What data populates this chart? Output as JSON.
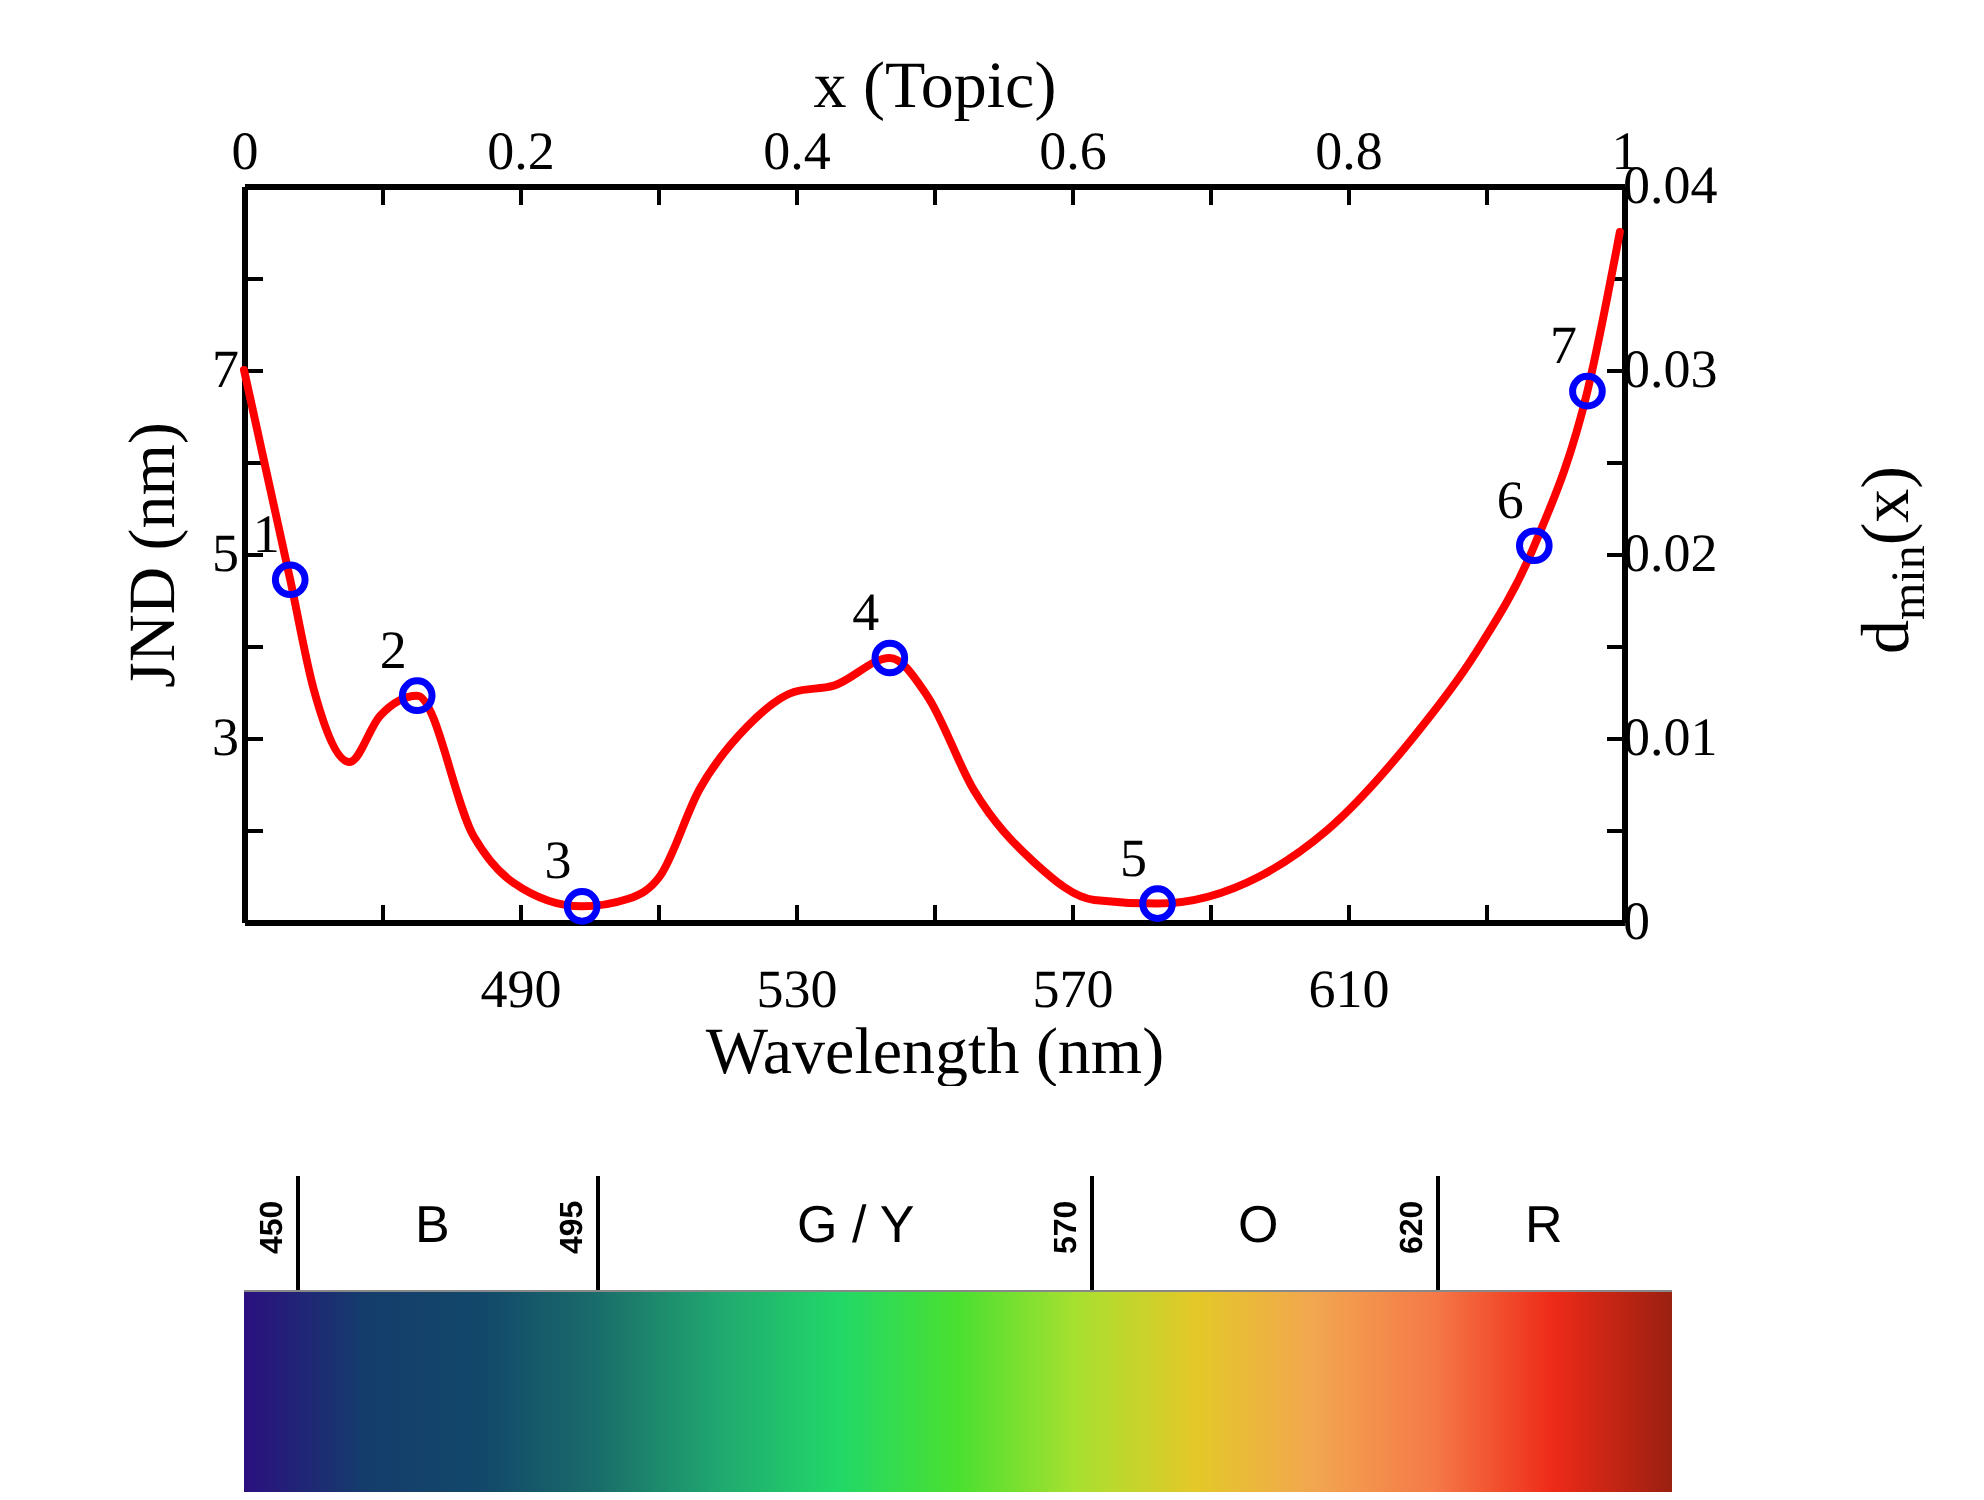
{
  "chart_data": [
    {
      "type": "line",
      "xlabel": "Wavelength (nm)",
      "ylabel": "JND (nm)",
      "x2label": "x (Topic)",
      "y2label": "d$_{min}$(x)",
      "xlim": [
        450,
        650
      ],
      "xticks": [
        {
          "value": 470,
          "label": null
        },
        490,
        {
          "value": 510,
          "label": null
        },
        530,
        {
          "value": 550,
          "label": null
        },
        570,
        {
          "value": 590,
          "label": null
        },
        610,
        {
          "value": 630,
          "label": null
        }
      ],
      "ylim": [
        1,
        9
      ],
      "yticks": [
        {
          "value": 2,
          "label": null
        },
        3,
        {
          "value": 4,
          "label": null
        },
        5,
        {
          "value": 6,
          "label": null
        },
        7,
        {
          "value": 8,
          "label": null
        }
      ],
      "x2lim": [
        0,
        1
      ],
      "x2ticks": [
        0,
        {
          "value": 0.1,
          "label": null
        },
        0.2,
        {
          "value": 0.3,
          "label": null
        },
        0.4,
        {
          "value": 0.5,
          "label": null
        },
        0.6,
        {
          "value": 0.7,
          "label": null
        },
        0.8,
        {
          "value": 0.9,
          "label": null
        },
        1
      ],
      "y2lim": [
        0,
        0.04
      ],
      "y2ticks": [
        0,
        {
          "value": 0.005,
          "label": null
        },
        0.01,
        {
          "value": 0.015,
          "label": null
        },
        0.02,
        {
          "value": 0.025,
          "label": null
        },
        0.03,
        {
          "value": 0.035,
          "label": null
        },
        0.04
      ],
      "line_style": "solid",
      "series": [
        {
          "type": "line",
          "color": "#ff0000",
          "x": [
            450,
            456.7,
            460.1,
            465.3,
            469.7,
            475.1,
            483.3,
            489,
            499,
            505.6,
            510.3,
            516,
            523,
            529.7,
            535.5,
            543.6,
            549,
            555.8,
            564.5,
            573.2,
            582.4,
            597.3,
            607,
            619.6,
            628.3,
            637,
            644.7,
            649.4
          ],
          "values": [
            7.0,
            4.72,
            3.53,
            2.74,
            3.24,
            3.46,
            1.93,
            1.43,
            1.17,
            1.25,
            1.5,
            2.44,
            3.13,
            3.5,
            3.57,
            3.87,
            3.46,
            2.43,
            1.65,
            1.24,
            1.2,
            1.5,
            2.0,
            3.02,
            3.9,
            5.09,
            6.77,
            8.5
          ]
        },
        {
          "type": "scatter",
          "color": "#0000ff",
          "marker": "circle",
          "x": [
            456.7,
            475.1,
            499,
            543.6,
            582.4,
            637,
            644.7
          ],
          "values": [
            4.72,
            3.46,
            1.17,
            3.87,
            1.2,
            5.09,
            6.77
          ]
        }
      ],
      "annotations": [
        {
          "text": "1",
          "x": 456.7,
          "y": 4.72
        },
        {
          "text": "2",
          "x": 475.1,
          "y": 3.46
        },
        {
          "text": "3",
          "x": 499,
          "y": 1.17
        },
        {
          "text": "4",
          "x": 543.6,
          "y": 3.87
        },
        {
          "text": "5",
          "x": 582.4,
          "y": 1.2
        },
        {
          "text": "6",
          "x": 637,
          "y": 5.09
        },
        {
          "text": "7",
          "x": 644.7,
          "y": 6.77
        }
      ]
    },
    {
      "type": "other",
      "annotations": [
        "450",
        "B",
        "495",
        "G / Y",
        "570",
        "O",
        "620",
        "R"
      ],
      "colors": [
        "#2b1080",
        "#153c6c",
        "#12486a",
        "#1a6e6a",
        "#20a870",
        "#22d868",
        "#4ae030",
        "#a8e030",
        "#e4c828",
        "#f2a650",
        "#f57a48",
        "#ee2a18",
        "#9a2010"
      ]
    }
  ]
}
